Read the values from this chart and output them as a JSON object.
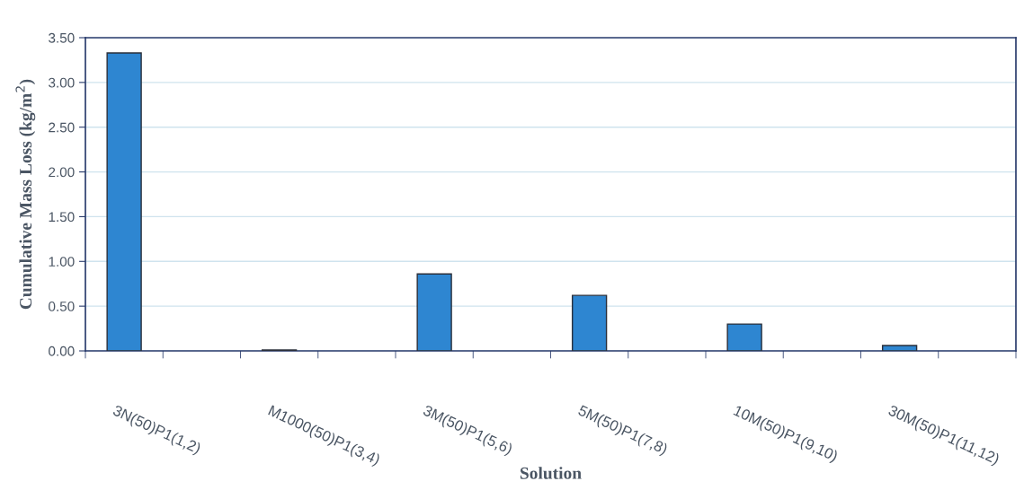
{
  "chart_data": {
    "type": "bar",
    "xlabel": "Solution",
    "ylabel": "Cumulative Mass Loss (kg/m$^{2}$)",
    "categories": [
      "3N(50)P1(1,2)",
      null,
      "M1000(50)P1(3,4)",
      null,
      "3M(50)P1(5,6)",
      null,
      "5M(50)P1(7,8)",
      null,
      "10M(50)P1(9,10)",
      null,
      "30M(50)P1(11,12)",
      null
    ],
    "values": [
      3.33,
      null,
      0.01,
      null,
      0.86,
      null,
      0.62,
      null,
      0.3,
      null,
      0.06,
      null
    ],
    "color": "#2e86d1",
    "ylim": [
      0,
      3.5
    ],
    "yticks": [
      {
        "value": 0,
        "label": "0.00"
      },
      {
        "value": 0.5,
        "label": "0.50"
      },
      {
        "value": 1,
        "label": "1.00"
      },
      {
        "value": 1.5,
        "label": "1.50"
      },
      {
        "value": 2,
        "label": "2.00"
      },
      {
        "value": 2.5,
        "label": "2.50"
      },
      {
        "value": 3,
        "label": "3.00"
      },
      {
        "value": 3.5,
        "label": "3.50"
      }
    ],
    "grid": "y"
  }
}
